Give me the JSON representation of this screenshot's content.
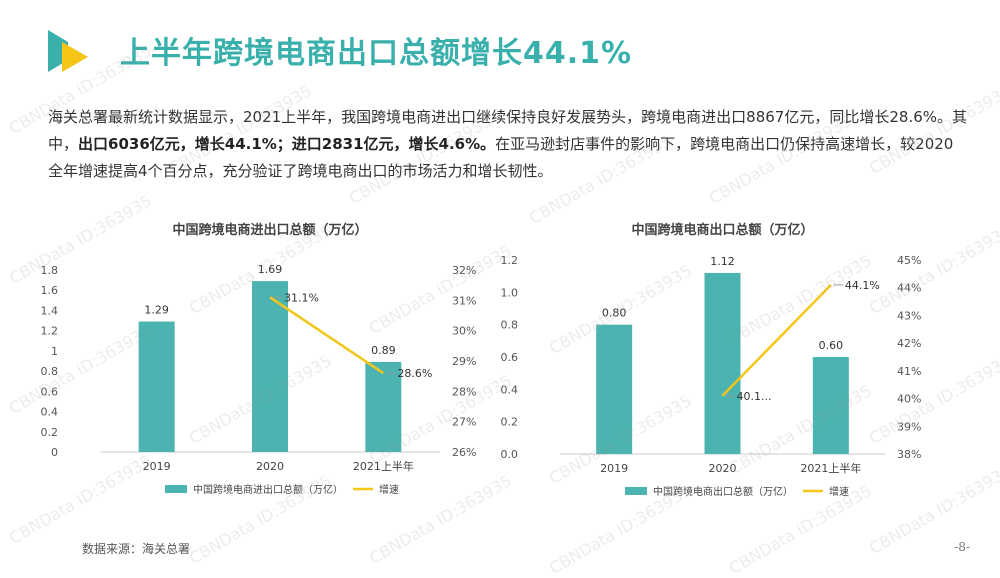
{
  "page": {
    "title": "上半年跨境电商出口总额增长44.1%",
    "intro": {
      "p1": "海关总署最新统计数据显示，2021上半年，我国跨境电商进出口继续保持良好发展势头，跨境电商进出口8867亿元，同比增长28.6%。其中，",
      "b1": "出口6036亿元，增长44.1%；进口2831亿元，增长4.6%。",
      "p2": "在亚马逊封店事件的影响下，跨境电商出口仍保持高速增长，较2020全年增速提高4个百分点，充分验证了跨境电商出口的市场活力和增长韧性。"
    },
    "source": "数据来源：海关总署",
    "page_number": "-8-",
    "watermark": "CBNData ID:363935",
    "colors": {
      "bar": "#4bb3b0",
      "line": "#f5c518",
      "title": "#3ab0ad",
      "logo_a": "#3ab0ad",
      "logo_b": "#f5c518"
    }
  },
  "chart_data": [
    {
      "type": "bar",
      "title": "中国跨境电商进出口总额（万亿）",
      "categories": [
        "2019",
        "2020",
        "2021上半年"
      ],
      "series": [
        {
          "name": "中国跨境电商进出口总额（万亿）",
          "type": "bar",
          "axis": "left",
          "values": [
            1.29,
            1.69,
            0.89
          ],
          "labels": [
            "1.29",
            "1.69",
            "0.89"
          ]
        },
        {
          "name": "增速",
          "type": "line",
          "axis": "right",
          "values": [
            null,
            31.1,
            28.6
          ],
          "labels": [
            "",
            "31.1%",
            "28.6%"
          ]
        }
      ],
      "y_left": {
        "min": 0,
        "max": 1.8,
        "ticks": [
          "0",
          "0.2",
          "0.4",
          "0.6",
          "0.8",
          "1",
          "1.2",
          "1.4",
          "1.6",
          "1.8"
        ]
      },
      "y_right": {
        "min": 26,
        "max": 32,
        "ticks": [
          "26%",
          "27%",
          "28%",
          "29%",
          "30%",
          "31%",
          "32%"
        ]
      },
      "legend": [
        "中国跨境电商进出口总额（万亿）",
        "增速"
      ],
      "legend_position": "bottom"
    },
    {
      "type": "bar",
      "title": "中国跨境电商出口总额（万亿）",
      "categories": [
        "2019",
        "2020",
        "2021上半年"
      ],
      "series": [
        {
          "name": "中国跨境电商出口总额（万亿）",
          "type": "bar",
          "axis": "left",
          "values": [
            0.8,
            1.12,
            0.6
          ],
          "labels": [
            "0.80",
            "1.12",
            "0.60"
          ]
        },
        {
          "name": "增速",
          "type": "line",
          "axis": "right",
          "values": [
            null,
            40.1,
            44.1
          ],
          "labels": [
            "",
            "40.1...",
            "44.1%"
          ]
        }
      ],
      "y_left": {
        "min": 0,
        "max": 1.2,
        "ticks": [
          "0.0",
          "0.2",
          "0.4",
          "0.6",
          "0.8",
          "1.0",
          "1.2"
        ]
      },
      "y_right": {
        "min": 38,
        "max": 45,
        "ticks": [
          "38%",
          "39%",
          "40%",
          "41%",
          "42%",
          "43%",
          "44%",
          "45%"
        ]
      },
      "legend": [
        "中国跨境电商出口总额（万亿）",
        "增速"
      ],
      "legend_position": "bottom"
    }
  ]
}
